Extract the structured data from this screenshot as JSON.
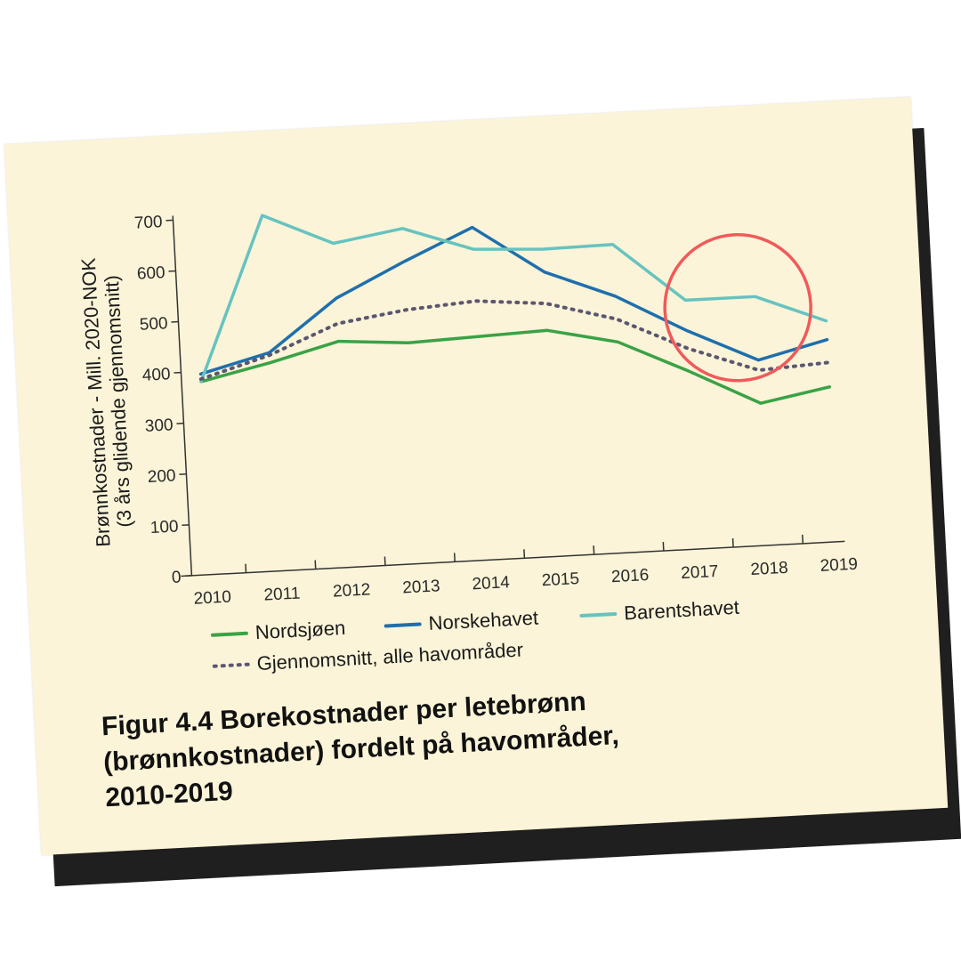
{
  "caption": "Figur 4.4 Borekostnader per letebrønn\n(brønnkostnader) fordelt på havområder,\n2010-2019",
  "chart_data": {
    "type": "line",
    "ylabel_line1": "Brønnkostnader - Mill. 2020-NOK",
    "ylabel_line2": "(3 års glidende gjennomsnitt)",
    "categories": [
      "2010",
      "2011",
      "2012",
      "2013",
      "2014",
      "2015",
      "2016",
      "2017",
      "2018",
      "2019"
    ],
    "ylim": [
      0,
      700
    ],
    "yticks": [
      0,
      100,
      200,
      300,
      400,
      500,
      600,
      700
    ],
    "grid": false,
    "legend_position": "bottom",
    "series": [
      {
        "name": "Nordsjøen",
        "color": "#3aa246",
        "style": "solid",
        "values": [
          380,
          410,
          445,
          435,
          440,
          445,
          415,
          350,
          280,
          305
        ]
      },
      {
        "name": "Norskehavet",
        "color": "#1f6fad",
        "style": "solid",
        "values": [
          395,
          430,
          530,
          595,
          655,
          560,
          505,
          430,
          365,
          398
        ]
      },
      {
        "name": "Barentshavet",
        "color": "#66c3c0",
        "style": "solid",
        "values": [
          380,
          700,
          638,
          660,
          612,
          605,
          607,
          490,
          490,
          435
        ]
      },
      {
        "name": "Gjennomsnitt, alle havområder",
        "color": "#5b5670",
        "style": "dotted",
        "values": [
          385,
          425,
          480,
          500,
          510,
          498,
          460,
          395,
          345,
          353
        ]
      }
    ],
    "annotation": {
      "shape": "circle",
      "color": "#f05a5a",
      "target": "2018"
    }
  }
}
